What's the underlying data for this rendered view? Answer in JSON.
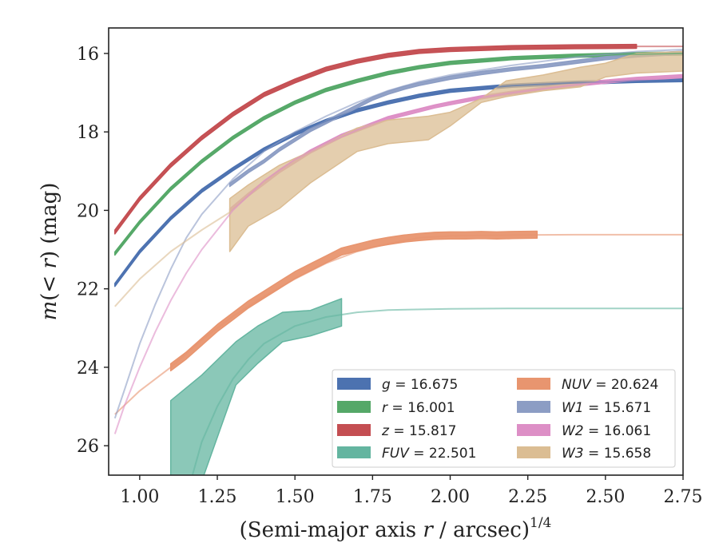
{
  "chart_data": {
    "type": "line",
    "xlabel": "(Semi-major axis r / arcsec)^1/4",
    "xlabel_parts": {
      "prefix": "(Semi-major axis ",
      "var": "r",
      "suffix": " / arcsec)",
      "exponent": "1/4"
    },
    "ylabel": "m(<r) (mag)",
    "ylabel_parts": {
      "var": "m",
      "middle": "(",
      "var2": "< r",
      "suffix": ") (mag)"
    },
    "xlim": [
      0.9,
      2.75
    ],
    "ylim": [
      26.75,
      15.35
    ],
    "y_inverted": true,
    "x_ticks": [
      "1.00",
      "1.25",
      "1.50",
      "1.75",
      "2.00",
      "2.25",
      "2.50",
      "2.75"
    ],
    "x_tick_values": [
      1.0,
      1.25,
      1.5,
      1.75,
      2.0,
      2.25,
      2.5,
      2.75
    ],
    "y_ticks": [
      "16",
      "18",
      "20",
      "22",
      "24",
      "26"
    ],
    "y_tick_values": [
      16,
      18,
      20,
      22,
      24,
      26
    ],
    "grid": false,
    "legend_placement": "lower-right",
    "series": [
      {
        "name": "g = 16.675",
        "legend_var": "g",
        "legend_value": "16.675",
        "color": "#4c72b0",
        "model_x": [
          0.92,
          1.0,
          1.1,
          1.2,
          1.3,
          1.4,
          1.5,
          1.6,
          1.7,
          1.8,
          1.9,
          2.0,
          2.2,
          2.4,
          2.6,
          2.75
        ],
        "model_y": [
          21.9,
          21.05,
          20.2,
          19.5,
          18.95,
          18.45,
          18.05,
          17.72,
          17.45,
          17.25,
          17.08,
          16.95,
          16.82,
          16.75,
          16.7,
          16.68
        ],
        "band_x": [
          0.92,
          1.0,
          1.1,
          1.2,
          1.3,
          1.4,
          1.5,
          1.6,
          1.7,
          1.8,
          1.9,
          2.0,
          2.2,
          2.4,
          2.6,
          2.75
        ],
        "band_y": [
          21.9,
          21.05,
          20.2,
          19.5,
          18.95,
          18.45,
          18.05,
          17.72,
          17.45,
          17.25,
          17.08,
          16.95,
          16.82,
          16.75,
          16.7,
          16.68
        ],
        "band_err": 0.04
      },
      {
        "name": "r = 16.001",
        "legend_var": "r",
        "legend_value": "16.001",
        "color": "#55a868",
        "model_x": [
          0.92,
          1.0,
          1.1,
          1.2,
          1.3,
          1.4,
          1.5,
          1.6,
          1.7,
          1.8,
          1.9,
          2.0,
          2.2,
          2.4,
          2.6,
          2.75
        ],
        "model_y": [
          21.1,
          20.3,
          19.45,
          18.75,
          18.15,
          17.65,
          17.25,
          16.93,
          16.7,
          16.5,
          16.35,
          16.24,
          16.12,
          16.06,
          16.02,
          16.0
        ],
        "band_x": [
          0.92,
          1.0,
          1.1,
          1.2,
          1.3,
          1.4,
          1.5,
          1.6,
          1.7,
          1.8,
          1.9,
          2.0,
          2.2,
          2.4,
          2.6,
          2.75
        ],
        "band_y": [
          21.1,
          20.3,
          19.45,
          18.75,
          18.15,
          17.65,
          17.25,
          16.93,
          16.7,
          16.5,
          16.35,
          16.24,
          16.12,
          16.06,
          16.02,
          16.0
        ],
        "band_err": 0.04
      },
      {
        "name": "z = 15.817",
        "legend_var": "z",
        "legend_value": "15.817",
        "color": "#c44e52",
        "model_x": [
          0.92,
          1.0,
          1.1,
          1.2,
          1.3,
          1.4,
          1.5,
          1.6,
          1.7,
          1.8,
          1.9,
          2.0,
          2.2,
          2.4,
          2.6,
          2.75
        ],
        "model_y": [
          20.55,
          19.7,
          18.85,
          18.15,
          17.55,
          17.05,
          16.7,
          16.4,
          16.2,
          16.05,
          15.95,
          15.9,
          15.85,
          15.83,
          15.82,
          15.82
        ],
        "band_x": [
          0.92,
          1.0,
          1.1,
          1.2,
          1.3,
          1.4,
          1.5,
          1.6,
          1.7,
          1.8,
          1.9,
          2.0,
          2.2,
          2.4,
          2.6
        ],
        "band_y": [
          20.55,
          19.7,
          18.85,
          18.15,
          17.55,
          17.05,
          16.7,
          16.4,
          16.2,
          16.05,
          15.95,
          15.9,
          15.85,
          15.83,
          15.82
        ],
        "band_err": 0.05
      },
      {
        "name": "FUV = 22.501",
        "legend_var": "FUV",
        "legend_value": "22.501",
        "color": "#64b5a0",
        "model_x": [
          1.17,
          1.2,
          1.25,
          1.3,
          1.35,
          1.4,
          1.5,
          1.6,
          1.7,
          1.8,
          2.0,
          2.2,
          2.4,
          2.6,
          2.75
        ],
        "model_y": [
          26.75,
          25.9,
          25.0,
          24.3,
          23.8,
          23.4,
          22.95,
          22.72,
          22.6,
          22.54,
          22.51,
          22.5,
          22.5,
          22.5,
          22.5
        ],
        "band_x": [
          1.1,
          1.2,
          1.31,
          1.38,
          1.46,
          1.55,
          1.65
        ],
        "band_upper": [
          24.85,
          24.2,
          23.35,
          22.95,
          22.6,
          22.55,
          22.25
        ],
        "band_lower": [
          26.9,
          26.9,
          24.45,
          23.9,
          23.35,
          23.2,
          22.95
        ]
      },
      {
        "name": "NUV = 20.624",
        "legend_var": "NUV",
        "legend_value": "20.624",
        "color": "#e8956f",
        "model_x": [
          0.92,
          1.0,
          1.1,
          1.2,
          1.3,
          1.4,
          1.5,
          1.6,
          1.7,
          1.8,
          1.9,
          2.0,
          2.2,
          2.4,
          2.6,
          2.75
        ],
        "model_y": [
          25.2,
          24.6,
          24.0,
          23.3,
          22.7,
          22.2,
          21.75,
          21.35,
          21.05,
          20.85,
          20.7,
          20.65,
          20.63,
          20.62,
          20.62,
          20.62
        ],
        "band_x": [
          1.1,
          1.15,
          1.2,
          1.25,
          1.3,
          1.35,
          1.4,
          1.45,
          1.5,
          1.55,
          1.6,
          1.65,
          1.7,
          1.75,
          1.8,
          1.85,
          1.9,
          1.95,
          2.0,
          2.05,
          2.1,
          2.15,
          2.2,
          2.28
        ],
        "band_y": [
          24.0,
          23.7,
          23.35,
          23.0,
          22.7,
          22.4,
          22.15,
          21.9,
          21.65,
          21.45,
          21.25,
          21.05,
          20.95,
          20.85,
          20.78,
          20.72,
          20.68,
          20.65,
          20.64,
          20.64,
          20.63,
          20.64,
          20.63,
          20.62
        ],
        "band_err": 0.09
      },
      {
        "name": "W1 = 15.671",
        "legend_var": "W1",
        "legend_value": "15.671",
        "color": "#8c9dc4",
        "model_x": [
          0.92,
          0.95,
          1.0,
          1.05,
          1.1,
          1.15,
          1.2,
          1.3,
          1.4,
          1.5,
          1.6,
          1.7,
          1.8,
          1.9,
          2.0,
          2.2,
          2.4,
          2.6,
          2.75
        ],
        "model_y": [
          25.3,
          24.6,
          23.4,
          22.4,
          21.5,
          20.7,
          20.1,
          19.2,
          18.5,
          18.0,
          17.6,
          17.25,
          16.95,
          16.72,
          16.55,
          16.3,
          16.1,
          15.95,
          15.9
        ],
        "band_x": [
          1.29,
          1.35,
          1.4,
          1.45,
          1.5,
          1.55,
          1.6,
          1.65,
          1.7,
          1.75,
          1.8,
          1.85,
          1.9,
          1.95,
          2.0,
          2.1,
          2.2,
          2.3,
          2.4,
          2.5,
          2.6,
          2.75
        ],
        "band_y": [
          19.35,
          19.0,
          18.75,
          18.45,
          18.2,
          17.95,
          17.75,
          17.55,
          17.35,
          17.15,
          17.0,
          16.88,
          16.78,
          16.7,
          16.62,
          16.5,
          16.4,
          16.32,
          16.22,
          16.12,
          16.05,
          15.98
        ],
        "band_err": 0.04
      },
      {
        "name": "W2 = 16.061",
        "legend_var": "W2",
        "legend_value": "16.061",
        "color": "#dd8fc6",
        "model_x": [
          0.92,
          0.95,
          1.0,
          1.05,
          1.1,
          1.15,
          1.2,
          1.3,
          1.4,
          1.5,
          1.6,
          1.7,
          1.8,
          1.9,
          2.0,
          2.2,
          2.4,
          2.6,
          2.75
        ],
        "model_y": [
          25.7,
          25.0,
          24.0,
          23.1,
          22.3,
          21.6,
          21.0,
          20.0,
          19.25,
          18.7,
          18.3,
          17.95,
          17.65,
          17.42,
          17.25,
          17.0,
          16.8,
          16.65,
          16.6
        ],
        "band_x": [
          1.29,
          1.35,
          1.4,
          1.45,
          1.5,
          1.55,
          1.6,
          1.65,
          1.7,
          1.75,
          1.8,
          1.85,
          1.9,
          1.95,
          2.0,
          2.1,
          2.2,
          2.3,
          2.4,
          2.5,
          2.6,
          2.75
        ],
        "band_y": [
          20.0,
          19.6,
          19.3,
          19.0,
          18.75,
          18.5,
          18.3,
          18.1,
          17.95,
          17.8,
          17.65,
          17.55,
          17.45,
          17.35,
          17.27,
          17.12,
          17.0,
          16.9,
          16.8,
          16.72,
          16.65,
          16.58
        ],
        "band_err": 0.04
      },
      {
        "name": "W3 = 15.658",
        "legend_var": "W3",
        "legend_value": "15.658",
        "color": "#dbbd93",
        "model_x": [
          0.92,
          1.0,
          1.1,
          1.2,
          1.29
        ],
        "model_y": [
          22.45,
          21.75,
          21.05,
          20.5,
          20.05
        ],
        "band_x": [
          1.29,
          1.35,
          1.45,
          1.55,
          1.7,
          1.8,
          1.93,
          2.0,
          2.1,
          2.18,
          2.3,
          2.42,
          2.5,
          2.6,
          2.75
        ],
        "band_upper": [
          19.7,
          19.35,
          18.85,
          18.5,
          17.9,
          17.7,
          17.6,
          17.5,
          17.15,
          16.7,
          16.55,
          16.35,
          16.25,
          16.0,
          15.95
        ],
        "band_lower": [
          21.05,
          20.4,
          19.95,
          19.3,
          18.5,
          18.3,
          18.2,
          17.85,
          17.25,
          17.1,
          16.95,
          16.85,
          16.6,
          16.5,
          16.45
        ]
      }
    ]
  }
}
